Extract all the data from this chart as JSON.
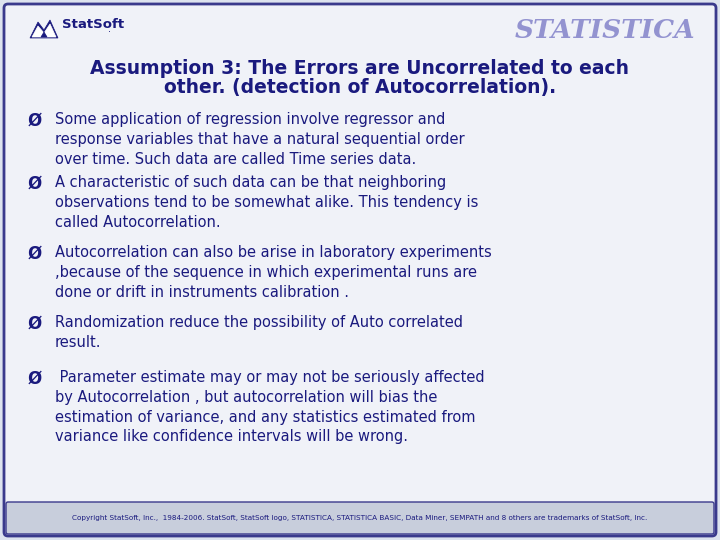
{
  "title_line1": "Assumption 3: The Errors are Uncorrelated to each",
  "title_line2": "other. (detection of Autocorrelation).",
  "bg_color": "#dde3ee",
  "inner_bg_color": "#f0f2f8",
  "border_color": "#3a3a8c",
  "title_color": "#1a1a7e",
  "body_color": "#1a1a7e",
  "bullet_points": [
    "Some application of regression involve regressor and\nresponse variables that have a natural sequential order\nover time. Such data are called Time series data.",
    "A characteristic of such data can be that neighboring\nobservations tend to be somewhat alike. This tendency is\ncalled Autocorrelation.",
    "Autocorrelation can also be arise in laboratory experiments\n,because of the sequence in which experimental runs are\ndone or drift in instruments calibration .",
    "Randomization reduce the possibility of Auto correlated\nresult.",
    " Parameter estimate may or may not be seriously affected\nby Autocorrelation , but autocorrelation will bias the\nestimation of variance, and any statistics estimated from\nvariance like confidence intervals will be wrong."
  ],
  "footer_text": "Copyright StatSoft, Inc.,  1984-2006. StatSoft, StatSoft logo, STATISTICA, STATISTICA BASIC, Data Miner, SEMPATH and 8 others are trademarks of StatSoft, Inc.",
  "statistica_color": "#8888cc",
  "statsoft_logo_color": "#1a1a7e",
  "footer_bg": "#c8cedc"
}
